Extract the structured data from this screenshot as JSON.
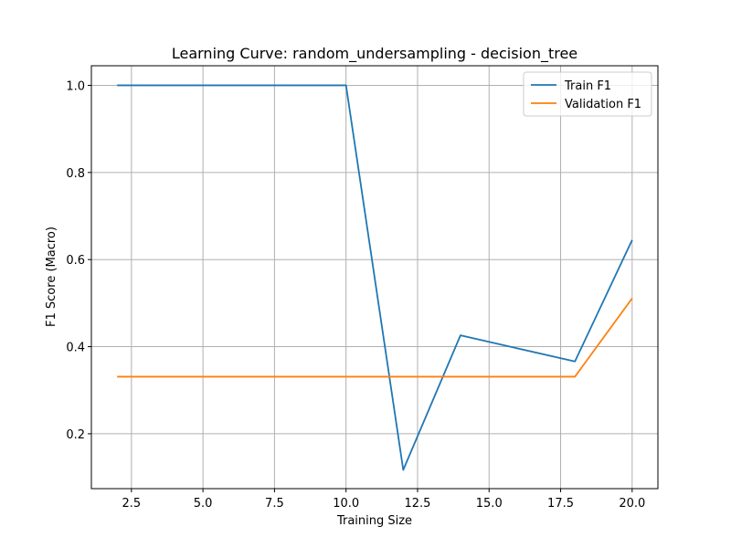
{
  "chart_data": {
    "type": "line",
    "title": "Learning Curve: random_undersampling - decision_tree",
    "xlabel": "Training Size",
    "ylabel": "F1 Score (Macro)",
    "xlim": [
      1.1,
      20.9
    ],
    "ylim": [
      0.074,
      1.045
    ],
    "grid": true,
    "legend_position": "top-right",
    "x": [
      2,
      4,
      6,
      8,
      10,
      12,
      14,
      16,
      18,
      20
    ],
    "x_ticks": [
      2.5,
      5.0,
      7.5,
      10.0,
      12.5,
      15.0,
      17.5,
      20.0
    ],
    "x_tick_labels": [
      "2.5",
      "5.0",
      "7.5",
      "10.0",
      "12.5",
      "15.0",
      "17.5",
      "20.0"
    ],
    "y_ticks": [
      0.2,
      0.4,
      0.6,
      0.8,
      1.0
    ],
    "y_tick_labels": [
      "0.2",
      "0.4",
      "0.6",
      "0.8",
      "1.0"
    ],
    "series": [
      {
        "name": "Train F1",
        "color": "#1f77b4",
        "values": [
          1.0,
          1.0,
          1.0,
          1.0,
          1.0,
          0.117,
          0.426,
          0.396,
          0.366,
          0.645
        ]
      },
      {
        "name": "Validation F1",
        "color": "#ff7f0e",
        "values": [
          0.331,
          0.331,
          0.331,
          0.331,
          0.331,
          0.331,
          0.331,
          0.331,
          0.331,
          0.511
        ]
      }
    ]
  }
}
